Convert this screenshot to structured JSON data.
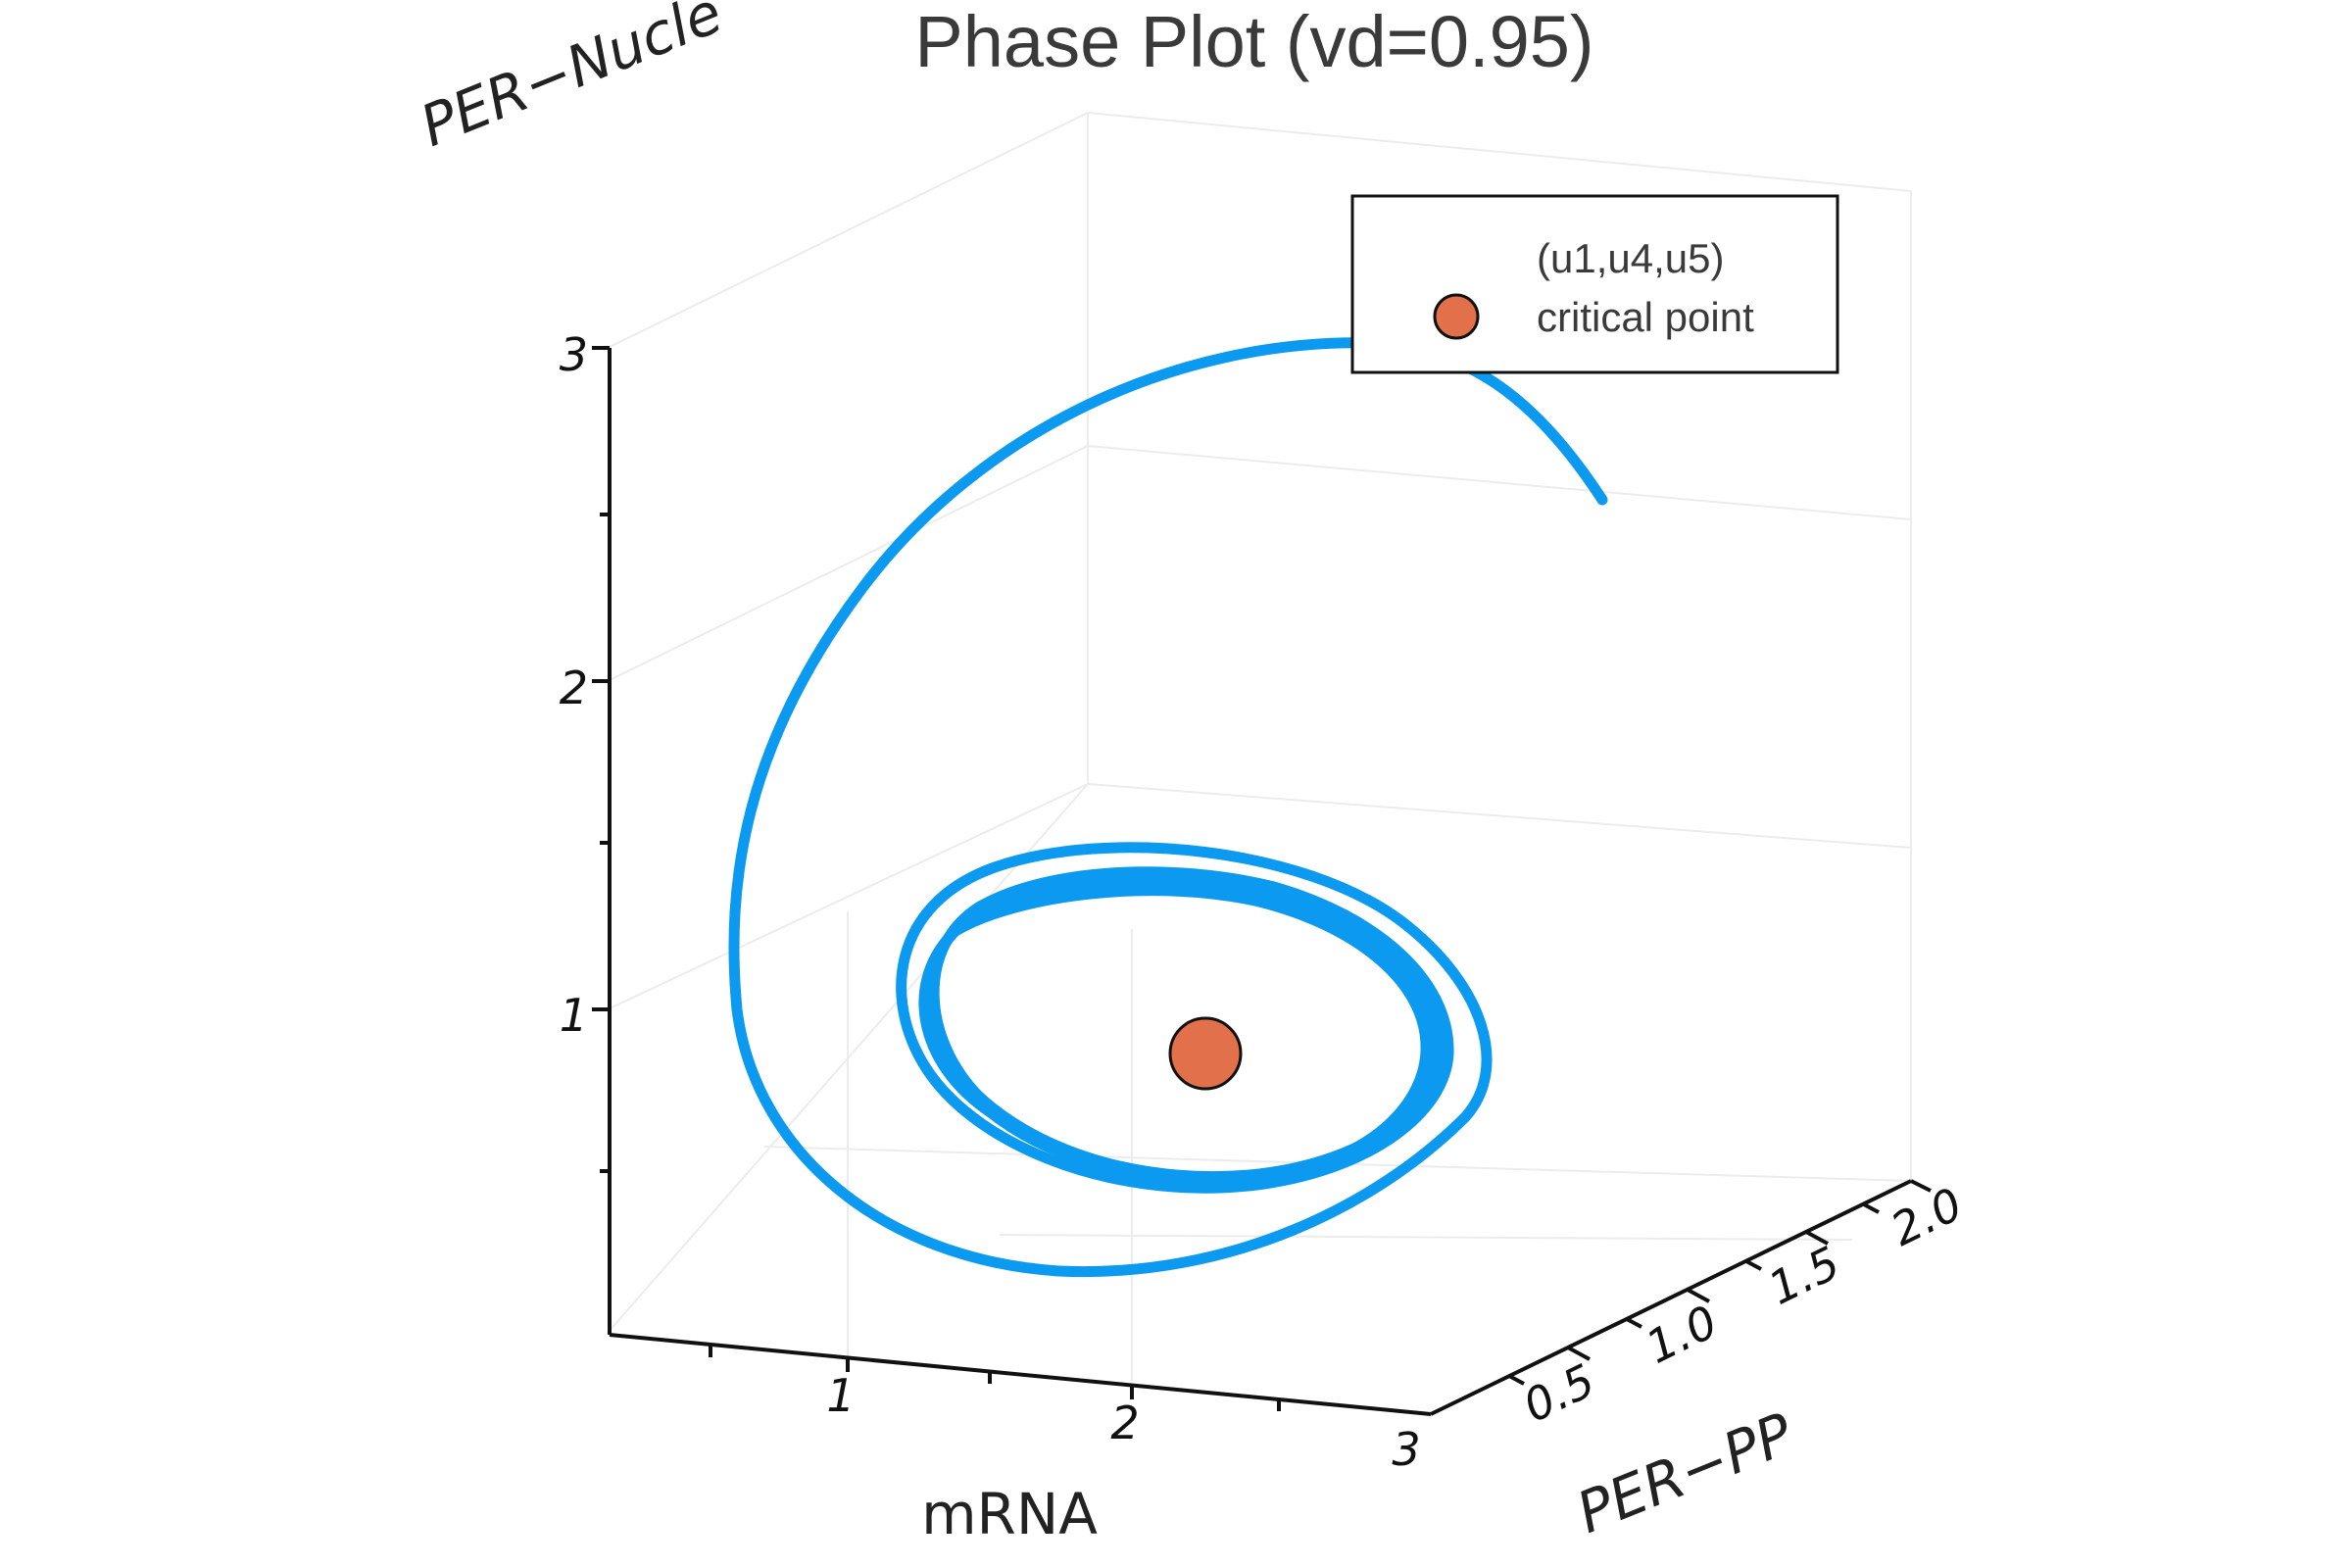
{
  "chart_data": {
    "type": "line3d",
    "title": "Phase Plot (vd=0.95)",
    "x_axis": {
      "label": "mRNA",
      "ticks": [
        "1",
        "2",
        "3"
      ]
    },
    "y_axis": {
      "label": "PER−PP",
      "ticks": [
        "0.5",
        "1.0",
        "1.5",
        "2.0"
      ]
    },
    "z_axis": {
      "label": "PER−Nucle",
      "ticks": [
        "1",
        "2",
        "3"
      ]
    },
    "legend": {
      "entries": [
        "(u1,u4,u5)",
        "critical point"
      ],
      "position": "top-right"
    },
    "grid": true,
    "series": [
      {
        "name": "(u1,u4,u5)",
        "kind": "trajectory",
        "color": "#0b9af0",
        "description_points_xyz": "spiral from high PER-Nucle toward a limit cycle around the critical point"
      },
      {
        "name": "critical point",
        "kind": "point",
        "color": "#e2704a",
        "x": 1.6,
        "y": 1.1,
        "z": 0.8
      }
    ]
  }
}
